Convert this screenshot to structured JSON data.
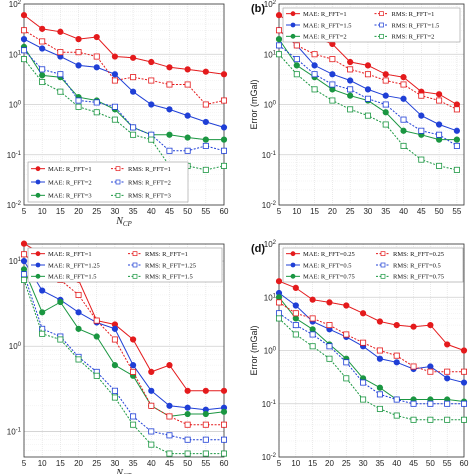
{
  "chart_data": [
    {
      "type": "line",
      "panel_label": "",
      "ylabel": "",
      "xlabel": "N_CP",
      "x": [
        5,
        10,
        15,
        20,
        25,
        30,
        35,
        40,
        45,
        50,
        55,
        60
      ],
      "xlim": [
        5,
        60
      ],
      "ylim_exp": [
        -2,
        2
      ],
      "yscale": "log",
      "grid": true,
      "legend_location": "lower-left",
      "series": [
        {
          "name": "MAE: R_FFT=1",
          "style": "solid",
          "marker": "circle",
          "color": "#e41a1c",
          "values": [
            60,
            32,
            28,
            20,
            22,
            9,
            8.5,
            7,
            5.5,
            5,
            4.5,
            4
          ]
        },
        {
          "name": "MAE: R_FFT=2",
          "style": "solid",
          "marker": "circle",
          "color": "#1f3fd6",
          "values": [
            20,
            13,
            9,
            6,
            5.5,
            4,
            1.8,
            1.0,
            0.8,
            0.6,
            0.45,
            0.35
          ]
        },
        {
          "name": "MAE: R_FFT=3",
          "style": "solid",
          "marker": "circle",
          "color": "#1a9641",
          "values": [
            14,
            3.8,
            3.5,
            1.4,
            1.2,
            0.8,
            0.35,
            0.25,
            0.25,
            0.22,
            0.2,
            0.2
          ]
        },
        {
          "name": "RMS: R_FFT=1",
          "style": "dashed",
          "marker": "square",
          "color": "#e41a1c",
          "values": [
            30,
            18,
            11,
            11,
            9,
            3,
            3.5,
            3,
            2.5,
            2.5,
            1.0,
            1.2
          ]
        },
        {
          "name": "RMS: R_FFT=2",
          "style": "dashed",
          "marker": "square",
          "color": "#1f3fd6",
          "values": [
            12,
            5,
            4,
            1.2,
            1.1,
            0.9,
            0.35,
            0.25,
            0.12,
            0.12,
            0.15,
            0.12
          ]
        },
        {
          "name": "RMS: R_FFT=3",
          "style": "dashed",
          "marker": "square",
          "color": "#1a9641",
          "values": [
            8,
            2.8,
            1.8,
            0.9,
            0.7,
            0.5,
            0.25,
            0.2,
            0.06,
            0.06,
            0.05,
            0.06
          ]
        }
      ]
    },
    {
      "type": "line",
      "panel_label": "(b)",
      "ylabel": "Error (mGal)",
      "xlabel": "",
      "x": [
        5,
        10,
        15,
        20,
        25,
        30,
        35,
        40,
        45,
        50,
        55
      ],
      "xlim": [
        5,
        57
      ],
      "ylim_exp": [
        -2,
        2
      ],
      "yscale": "log",
      "grid": true,
      "legend_location": "top",
      "series": [
        {
          "name": "MAE: R_FFT=1",
          "style": "solid",
          "marker": "circle",
          "color": "#e41a1c",
          "values": [
            60,
            35,
            22,
            16,
            7,
            6,
            4,
            3.5,
            1.8,
            1.6,
            1.0
          ]
        },
        {
          "name": "MAE: R_FFT=1.5",
          "style": "solid",
          "marker": "circle",
          "color": "#1f3fd6",
          "values": [
            30,
            15,
            6,
            4,
            3,
            2,
            1.5,
            1.3,
            0.6,
            0.4,
            0.3
          ]
        },
        {
          "name": "MAE: R_FFT=2",
          "style": "solid",
          "marker": "circle",
          "color": "#1a9641",
          "values": [
            20,
            6,
            3.5,
            2,
            1.5,
            1.2,
            0.7,
            0.3,
            0.25,
            0.2,
            0.2
          ]
        },
        {
          "name": "RMS: R_FFT=1",
          "style": "dashed",
          "marker": "square",
          "color": "#e41a1c",
          "values": [
            30,
            15,
            10,
            8,
            5,
            4,
            3,
            2.5,
            1.5,
            1.2,
            0.8
          ]
        },
        {
          "name": "RMS: R_FFT=1.5",
          "style": "dashed",
          "marker": "square",
          "color": "#1f3fd6",
          "values": [
            15,
            8,
            4,
            2.5,
            2,
            1.3,
            1.0,
            0.5,
            0.3,
            0.25,
            0.15
          ]
        },
        {
          "name": "RMS: R_FFT=2",
          "style": "dashed",
          "marker": "square",
          "color": "#1a9641",
          "values": [
            10,
            4,
            2,
            1.2,
            0.8,
            0.6,
            0.4,
            0.15,
            0.08,
            0.06,
            0.05
          ]
        }
      ]
    },
    {
      "type": "line",
      "panel_label": "",
      "ylabel": "",
      "xlabel": "N_CP",
      "x": [
        5,
        10,
        15,
        20,
        25,
        30,
        35,
        40,
        45,
        50,
        55,
        60
      ],
      "xlim": [
        5,
        60
      ],
      "ylim_exp": [
        -1.3,
        1.2
      ],
      "yscale": "log",
      "grid": true,
      "legend_location": "top",
      "series": [
        {
          "name": "MAE: R_FFT=1",
          "style": "solid",
          "marker": "circle",
          "color": "#e41a1c",
          "values": [
            16,
            12,
            9,
            6,
            2,
            1.8,
            1.2,
            0.5,
            0.6,
            0.3,
            0.3,
            0.3
          ]
        },
        {
          "name": "MAE: R_FFT=1.25",
          "style": "solid",
          "marker": "circle",
          "color": "#1f3fd6",
          "values": [
            10,
            4.5,
            3.5,
            2.5,
            1.9,
            1.6,
            0.6,
            0.3,
            0.2,
            0.19,
            0.18,
            0.19
          ]
        },
        {
          "name": "MAE: R_FFT=1.5",
          "style": "solid",
          "marker": "circle",
          "color": "#1a9641",
          "values": [
            8,
            2.5,
            3.3,
            1.6,
            1.3,
            0.6,
            0.45,
            0.2,
            0.15,
            0.16,
            0.16,
            0.17
          ]
        },
        {
          "name": "RMS: R_FFT=1",
          "style": "dashed",
          "marker": "square",
          "color": "#e41a1c",
          "values": [
            12,
            8,
            6,
            4,
            2,
            1.2,
            0.5,
            0.2,
            0.15,
            0.12,
            0.12,
            0.12
          ]
        },
        {
          "name": "RMS: R_FFT=1.25",
          "style": "dashed",
          "marker": "square",
          "color": "#1f3fd6",
          "values": [
            7,
            1.6,
            1.3,
            0.75,
            0.5,
            0.3,
            0.15,
            0.1,
            0.09,
            0.08,
            0.08,
            0.08
          ]
        },
        {
          "name": "RMS: R_FFT=1.5",
          "style": "dashed",
          "marker": "square",
          "color": "#1a9641",
          "values": [
            6,
            1.4,
            1.2,
            0.7,
            0.45,
            0.25,
            0.12,
            0.07,
            0.055,
            0.055,
            0.055,
            0.055
          ]
        }
      ]
    },
    {
      "type": "line",
      "panel_label": "(d)",
      "ylabel": "Error (mGal)",
      "xlabel": "",
      "x": [
        5,
        10,
        15,
        20,
        25,
        30,
        35,
        40,
        45,
        50,
        55,
        60
      ],
      "xlim": [
        5,
        60
      ],
      "ylim_exp": [
        -2,
        2
      ],
      "yscale": "log",
      "grid": true,
      "legend_location": "top",
      "series": [
        {
          "name": "MAE: R_FFT=0.25",
          "style": "solid",
          "marker": "circle",
          "color": "#e41a1c",
          "values": [
            20,
            15,
            9,
            8,
            7,
            5,
            3.5,
            3,
            2.8,
            3,
            1.3,
            1.0
          ]
        },
        {
          "name": "MAE: R_FFT=0.5",
          "style": "solid",
          "marker": "circle",
          "color": "#1f3fd6",
          "values": [
            12,
            7,
            3.5,
            2.5,
            1.8,
            1.2,
            0.7,
            0.6,
            0.45,
            0.5,
            0.3,
            0.25
          ]
        },
        {
          "name": "MAE: R_FFT=0.75",
          "style": "solid",
          "marker": "circle",
          "color": "#1a9641",
          "values": [
            10,
            4,
            2.5,
            1.3,
            0.7,
            0.3,
            0.2,
            0.12,
            0.12,
            0.12,
            0.12,
            0.11
          ]
        },
        {
          "name": "RMS: R_FFT=0.25",
          "style": "dashed",
          "marker": "square",
          "color": "#e41a1c",
          "values": [
            8,
            5,
            4,
            3,
            2,
            1.4,
            1.0,
            0.8,
            0.5,
            0.4,
            0.4,
            0.4
          ]
        },
        {
          "name": "RMS: R_FFT=0.5",
          "style": "dashed",
          "marker": "square",
          "color": "#1f3fd6",
          "values": [
            5,
            3,
            2,
            1.2,
            0.6,
            0.25,
            0.15,
            0.12,
            0.1,
            0.1,
            0.1,
            0.1
          ]
        },
        {
          "name": "RMS: R_FFT=0.75",
          "style": "dashed",
          "marker": "square",
          "color": "#1a9641",
          "values": [
            4,
            2,
            1.2,
            0.7,
            0.3,
            0.12,
            0.08,
            0.06,
            0.05,
            0.05,
            0.05,
            0.05
          ]
        }
      ]
    }
  ]
}
